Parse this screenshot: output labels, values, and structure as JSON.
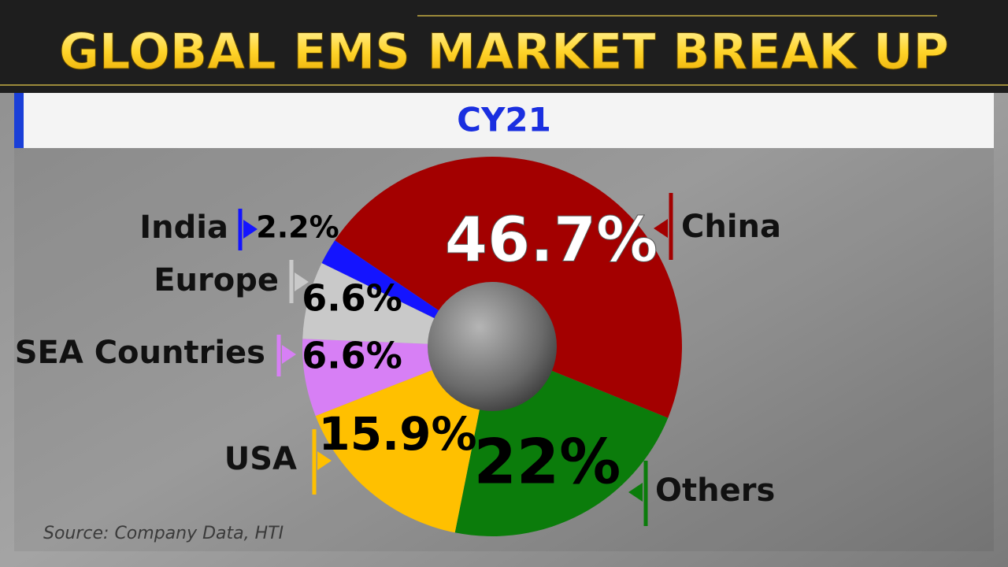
{
  "chart_data": {
    "type": "pie",
    "title": "GLOBAL EMS MARKET BREAK UP",
    "subtitle": "CY21",
    "categories": [
      "China",
      "Others",
      "USA",
      "SEA Countries",
      "Europe",
      "India"
    ],
    "values": [
      46.7,
      22,
      15.9,
      6.6,
      6.6,
      2.2
    ],
    "value_labels": [
      "46.7%",
      "22%",
      "15.9%",
      "6.6%",
      "6.6%",
      "2.2%"
    ],
    "colors": [
      "#a30000",
      "#0b7c0b",
      "#ffc000",
      "#d77ff5",
      "#c9c9c9",
      "#1414ff"
    ],
    "source": "Source: Company Data, HTI"
  }
}
